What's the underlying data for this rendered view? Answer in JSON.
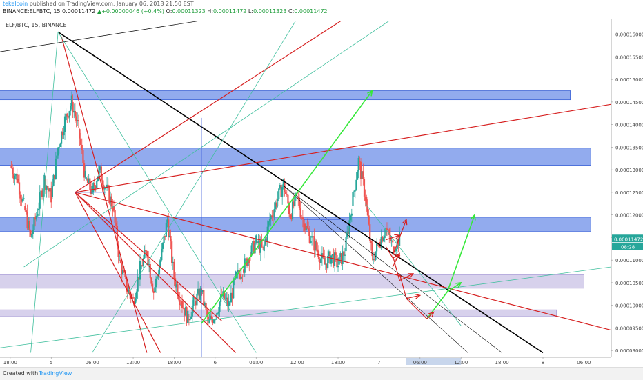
{
  "header": {
    "author": "tekelcoin",
    "published": "published on TradingView.com, January 06, 2018 21:50 EST",
    "symbol_full": "BINANCE:ELFBTC, 15",
    "last": "0.00011472",
    "change_arrow": "▲",
    "change": "+0.00000046 (+0.4%)",
    "o_label": "O:",
    "o": "0.00011323",
    "h_label": "H:",
    "h": "0.00011472",
    "l_label": "L:",
    "l": "0.00011323",
    "c_label": "C:",
    "c": "0.00011472"
  },
  "chart_title": "ELF/BTC, 15, BINANCE",
  "footer": {
    "created": "Created with",
    "brand": "TradingView"
  },
  "colors": {
    "up": "#26a69a",
    "down": "#ef5350",
    "bluezone": "#6d8fe8",
    "purplezone": "#c9c1e6",
    "red": "#d61f1f",
    "green": "#36e83a",
    "black": "#000000",
    "teal": "#3fbf9d"
  },
  "chart_data": {
    "type": "candlestick",
    "title": "ELF/BTC, 15, BINANCE",
    "ylim": [
      8.85e-05,
      0.000163
    ],
    "y_ticks": [
      "0.00016000",
      "0.00015500",
      "0.00015000",
      "0.00014500",
      "0.00014000",
      "0.00013500",
      "0.00013000",
      "0.00012500",
      "0.00012000",
      "0.00011500",
      "0.00011000",
      "0.00010500",
      "0.00010000",
      "0.00009500",
      "0.00009000"
    ],
    "y_tick_values": [
      0.00016,
      0.000155,
      0.00015,
      0.000145,
      0.00014,
      0.000135,
      0.00013,
      0.000125,
      0.00012,
      0.000115,
      0.00011,
      0.000105,
      0.0001,
      9.5e-05,
      9e-05
    ],
    "x_ticks": [
      "18:00",
      "5",
      "06:00",
      "12:00",
      "18:00",
      "6",
      "06:00",
      "12:00",
      "18:00",
      "7",
      "06:00",
      "12:00",
      "18:00",
      "8",
      "06:00"
    ],
    "x_tick_hours": [
      0,
      6,
      12,
      18,
      24,
      30,
      36,
      42,
      48,
      54,
      60,
      66,
      72,
      78,
      84
    ],
    "last_price_label": "0.00011472",
    "countdown_label": "08:28",
    "close_path": [
      [
        0,
        0.000131
      ],
      [
        1,
        0.000128
      ],
      [
        2,
        0.000122
      ],
      [
        3,
        0.000115
      ],
      [
        4,
        0.000121
      ],
      [
        5,
        0.000128
      ],
      [
        6,
        0.000124
      ],
      [
        7,
        0.000135
      ],
      [
        8,
        0.000141
      ],
      [
        9,
        0.000145
      ],
      [
        10,
        0.000139
      ],
      [
        11,
        0.000128
      ],
      [
        12,
        0.000125
      ],
      [
        13,
        0.00013
      ],
      [
        14,
        0.000126
      ],
      [
        15,
        0.000122
      ],
      [
        16,
        0.00011
      ],
      [
        17,
        0.000104
      ],
      [
        18,
        0.000101
      ],
      [
        19,
        0.000108
      ],
      [
        20,
        0.000112
      ],
      [
        21,
        0.000103
      ],
      [
        22,
        0.00011
      ],
      [
        23,
        0.000119
      ],
      [
        24,
        0.000106
      ],
      [
        25,
        0.000101
      ],
      [
        26,
        9.7e-05
      ],
      [
        27,
        0.000101
      ],
      [
        28,
        0.000103
      ],
      [
        29,
        9.6e-05
      ],
      [
        30,
        9.8e-05
      ],
      [
        31,
        0.000102
      ],
      [
        32,
        0.0001
      ],
      [
        33,
        0.000106
      ],
      [
        34,
        0.000108
      ],
      [
        35,
        0.000111
      ],
      [
        36,
        0.000114
      ],
      [
        37,
        0.000112
      ],
      [
        38,
        0.000119
      ],
      [
        39,
        0.000123
      ],
      [
        40,
        0.000127
      ],
      [
        41,
        0.00012
      ],
      [
        42,
        0.000124
      ],
      [
        43,
        0.000118
      ],
      [
        44,
        0.000115
      ],
      [
        45,
        0.000112
      ],
      [
        46,
        0.000109
      ],
      [
        47,
        0.000111
      ],
      [
        48,
        0.000109
      ],
      [
        49,
        0.000112
      ],
      [
        50,
        0.000122
      ],
      [
        51,
        0.000132
      ],
      [
        52,
        0.000124
      ],
      [
        53,
        0.00011
      ],
      [
        54,
        0.000114
      ],
      [
        55,
        0.000117
      ],
      [
        56,
        0.000113
      ],
      [
        57,
        0.00011472
      ]
    ],
    "zones": [
      {
        "kind": "blue",
        "low": 0.0001455,
        "high": 0.0001475,
        "x0": -2,
        "x1": 82
      },
      {
        "kind": "blue",
        "low": 0.000131,
        "high": 0.0001348,
        "x0": -2,
        "x1": 85
      },
      {
        "kind": "blue",
        "low": 0.0001163,
        "high": 0.0001195,
        "x0": -2,
        "x1": 85
      },
      {
        "kind": "purple",
        "low": 0.0001038,
        "high": 0.0001068,
        "x0": -2,
        "x1": 84
      },
      {
        "kind": "purple",
        "low": 9.75e-05,
        "high": 9.9e-05,
        "x0": -2,
        "x1": 80
      }
    ],
    "trendlines": [
      {
        "color": "black",
        "w": 1.6,
        "p": [
          [
            7,
            0.0001605
          ],
          [
            78,
            8.95e-05
          ]
        ]
      },
      {
        "color": "black",
        "w": 0.7,
        "p": [
          [
            -2,
            0.000156
          ],
          [
            30,
            0.0001635
          ]
        ]
      },
      {
        "color": "red",
        "w": 1.2,
        "p": [
          [
            9.5,
            0.000125
          ],
          [
            88,
            9.45e-05
          ]
        ]
      },
      {
        "color": "red",
        "w": 1.2,
        "p": [
          [
            9.5,
            0.000125
          ],
          [
            88,
            0.0001445
          ]
        ]
      },
      {
        "color": "red",
        "w": 1.2,
        "p": [
          [
            9.5,
            0.000125
          ],
          [
            50,
            0.0001645
          ]
        ]
      },
      {
        "color": "red",
        "w": 1.2,
        "p": [
          [
            9.5,
            0.000125
          ],
          [
            22,
            8.95e-05
          ]
        ]
      },
      {
        "color": "red",
        "w": 1.2,
        "p": [
          [
            9.5,
            0.000125
          ],
          [
            33,
            8.95e-05
          ]
        ]
      },
      {
        "color": "red",
        "w": 1.2,
        "p": [
          [
            7.5,
            0.0001595
          ],
          [
            20,
            8.95e-05
          ]
        ]
      },
      {
        "color": "red",
        "w": 1.2,
        "p": [
          [
            9.5,
            0.000125
          ],
          [
            31,
            9.65e-05
          ]
        ]
      },
      {
        "color": "teal",
        "w": 0.8,
        "p": [
          [
            -2,
            9.05e-05
          ],
          [
            88,
            0.0001085
          ]
        ]
      },
      {
        "color": "teal",
        "w": 0.8,
        "p": [
          [
            7,
            0.0001605
          ],
          [
            36,
            8.95e-05
          ]
        ]
      },
      {
        "color": "teal",
        "w": 0.8,
        "p": [
          [
            3,
            8.95e-05
          ],
          [
            7,
            0.0001605
          ]
        ]
      },
      {
        "color": "teal",
        "w": 0.8,
        "p": [
          [
            2,
            0.0001085
          ],
          [
            56,
            0.0001635
          ]
        ]
      },
      {
        "color": "teal",
        "w": 0.8,
        "p": [
          [
            12,
            8.95e-05
          ],
          [
            42,
            0.0001635
          ]
        ]
      },
      {
        "color": "black",
        "w": 0.6,
        "p": [
          [
            40,
            0.0001265
          ],
          [
            67,
            8.95e-05
          ]
        ]
      },
      {
        "color": "black",
        "w": 0.6,
        "p": [
          [
            40,
            0.0001265
          ],
          [
            72,
            8.95e-05
          ]
        ]
      },
      {
        "color": "teal",
        "w": 0.8,
        "p": [
          [
            52,
            0.0001225
          ],
          [
            66,
            9.55e-05
          ]
        ]
      },
      {
        "color": "blue",
        "w": 0.7,
        "p": [
          [
            28,
            8.75e-05
          ],
          [
            28,
            0.0001415
          ]
        ]
      },
      {
        "color": "blue",
        "w": 0.7,
        "p": [
          [
            9.5,
            0.000125
          ],
          [
            14,
            0.000125
          ]
        ]
      },
      {
        "color": "blue",
        "w": 0.7,
        "p": [
          [
            43,
            0.000119
          ],
          [
            49,
            0.000119
          ]
        ]
      }
    ],
    "arrows": [
      {
        "color": "green",
        "w": 1.6,
        "p": [
          [
            28,
            9.6e-05
          ],
          [
            53,
            0.0001475
          ]
        ]
      },
      {
        "color": "green",
        "w": 1.6,
        "p": [
          [
            61,
            9.7e-05
          ],
          [
            64,
            0.000103
          ],
          [
            66,
            0.000105
          ]
        ]
      },
      {
        "color": "green",
        "w": 1.6,
        "p": [
          [
            64,
            0.000103
          ],
          [
            68,
            0.00012
          ]
        ]
      },
      {
        "color": "red",
        "w": 1.2,
        "p": [
          [
            55,
            0.0001145
          ],
          [
            57,
            0.0001155
          ]
        ]
      },
      {
        "color": "red",
        "w": 1.2,
        "p": [
          [
            55,
            0.000113
          ],
          [
            56,
            0.0001105
          ],
          [
            57,
            0.000111
          ]
        ]
      },
      {
        "color": "red",
        "w": 1.2,
        "p": [
          [
            56,
            0.0001085
          ],
          [
            57,
            0.0001115
          ]
        ]
      },
      {
        "color": "red",
        "w": 1.2,
        "p": [
          [
            56,
            0.000111
          ],
          [
            58,
            0.000119
          ]
        ]
      },
      {
        "color": "red",
        "w": 1.2,
        "p": [
          [
            56,
            0.000111
          ],
          [
            57,
            0.0001055
          ],
          [
            59,
            0.000107
          ]
        ]
      },
      {
        "color": "red",
        "w": 1.2,
        "p": [
          [
            57,
            0.000107
          ],
          [
            58,
            0.0001015
          ],
          [
            60,
            0.0001022
          ]
        ]
      },
      {
        "color": "red",
        "w": 1.2,
        "p": [
          [
            58,
            0.0001015
          ],
          [
            61,
            9.7e-05
          ],
          [
            62,
            9.85e-05
          ]
        ]
      }
    ]
  }
}
